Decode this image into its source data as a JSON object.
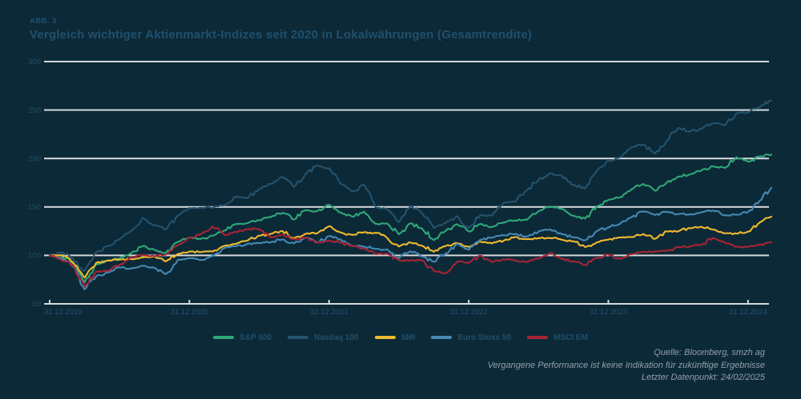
{
  "figure": {
    "label": "ABB. 3",
    "title": "Vergleich wichtiger Aktienmarkt-Indizes seit 2020 in Lokalwährungen (Gesamtrendite)"
  },
  "colors": {
    "background": "#0c2938",
    "heading_text": "#20506c",
    "axis_text": "#21516e",
    "gridline": "#d6dadd",
    "footer_text": "#93a0a8"
  },
  "footer": {
    "lines": [
      "Quelle: Bloomberg, smzh ag",
      "Vergangene Performance ist keine Indikation für zukünftige Ergebnisse",
      "Letzter Datenpunkt: 24/02/2025"
    ]
  },
  "chart_data": {
    "type": "line",
    "title": "Vergleich wichtiger Aktienmarkt-Indizes seit 2020 in Lokalwährungen (Gesamtrendite)",
    "xlabel": "",
    "ylabel": "",
    "ylim": [
      50,
      300
    ],
    "y_ticks": [
      300,
      250,
      200,
      150,
      100,
      50
    ],
    "grid": "horizontal",
    "legend_position": "bottom-center",
    "x_tick_labels": [
      "31.12.2019",
      "31.12.2020",
      "31.12.2021",
      "31.12.2022",
      "31.12.2023",
      "31.12.2024"
    ],
    "x_unit": "months-since-2019-12-31",
    "x_tick_months": [
      0,
      12,
      24,
      36,
      48,
      60
    ],
    "last_x_month": 62,
    "base_value": 100,
    "series": [
      {
        "name": "S&P 500",
        "color": "#2fa878",
        "values": [
          100,
          100,
          91.8,
          72.0,
          90.7,
          95.0,
          96.9,
          102.4,
          109.7,
          105.6,
          102.7,
          113.9,
          118.3,
          117.1,
          120.4,
          125.7,
          132.4,
          133.3,
          136.4,
          139.6,
          143.8,
          137.1,
          146.7,
          145.7,
          152.2,
          144.3,
          140.0,
          145.2,
          132.6,
          132.8,
          121.8,
          133.0,
          127.6,
          115.8,
          125.2,
          132.2,
          124.6,
          132.4,
          129.2,
          134.0,
          136.1,
          136.7,
          145.7,
          150.4,
          148.0,
          140.9,
          138.0,
          150.5,
          157.3,
          160.0,
          168.4,
          173.8,
          166.7,
          175.0,
          181.3,
          183.5,
          187.9,
          191.9,
          190.2,
          201.4,
          196.6,
          202.1,
          204.0
        ]
      },
      {
        "name": "Nasdaq 100",
        "color": "#24536d",
        "values": [
          100,
          103.0,
          96.9,
          84.0,
          103.1,
          109.6,
          116.5,
          125.1,
          138.9,
          131.0,
          126.9,
          140.9,
          148.9,
          149.3,
          149.2,
          151.7,
          160.7,
          158.8,
          168.8,
          173.7,
          181.0,
          170.7,
          184.2,
          193.0,
          189.8,
          173.7,
          165.9,
          172.9,
          149.9,
          147.5,
          134.2,
          151.0,
          143.3,
          128.2,
          133.3,
          140.6,
          128.0,
          141.6,
          141.0,
          154.4,
          155.2,
          167.2,
          178.0,
          184.8,
          182.0,
          172.7,
          169.1,
          187.2,
          197.5,
          201.2,
          211.9,
          214.4,
          205.0,
          217.9,
          231.6,
          227.9,
          230.4,
          236.2,
          234.3,
          246.5,
          247.5,
          253.0,
          260.0
        ]
      },
      {
        "name": "SMI",
        "color": "#f0b92e",
        "values": [
          100,
          100.2,
          92.7,
          77.0,
          92.4,
          94.7,
          95.7,
          96.2,
          98.0,
          98.9,
          94.0,
          101.5,
          104.0,
          103.5,
          104.0,
          109.7,
          111.9,
          115.3,
          120.5,
          122.3,
          125.2,
          117.7,
          122.4,
          122.9,
          130.1,
          123.6,
          121.1,
          123.8,
          123.3,
          118.0,
          109.1,
          113.3,
          109.9,
          103.8,
          109.5,
          112.6,
          108.8,
          114.2,
          112.3,
          115.1,
          119.0,
          116.7,
          117.9,
          118.0,
          116.1,
          114.6,
          108.6,
          113.5,
          116.3,
          118.4,
          119.0,
          122.0,
          117.1,
          124.8,
          124.8,
          128.2,
          129.5,
          126.6,
          122.7,
          122.5,
          124.5,
          134.0,
          140.0
        ]
      },
      {
        "name": "Euro Stoxx 50",
        "color": "#4489b2",
        "values": [
          100,
          97.2,
          88.9,
          65.0,
          78.5,
          82.4,
          87.8,
          86.4,
          89.1,
          87.1,
          80.7,
          95.3,
          97.0,
          95.2,
          99.5,
          107.4,
          109.4,
          111.9,
          112.7,
          113.5,
          116.5,
          112.5,
          118.4,
          113.3,
          119.8,
          116.5,
          109.6,
          109.2,
          106.6,
          106.2,
          97.0,
          104.3,
          99.0,
          93.4,
          101.9,
          111.8,
          105.8,
          116.3,
          118.5,
          120.9,
          122.2,
          119.3,
          124.5,
          126.8,
          122.0,
          118.7,
          115.6,
          125.0,
          129.0,
          132.7,
          139.4,
          145.3,
          141.6,
          145.0,
          142.6,
          142.2,
          144.7,
          146.2,
          141.4,
          142.1,
          144.8,
          156.4,
          170.0
        ]
      },
      {
        "name": "MSCI EM",
        "color": "#a82435",
        "values": [
          100,
          95.3,
          90.3,
          68.0,
          83.4,
          84.1,
          90.3,
          98.3,
          100.5,
          98.9,
          101.0,
          110.3,
          118.4,
          122.0,
          130.0,
          121.1,
          124.2,
          127.0,
          127.2,
          118.7,
          121.8,
          116.9,
          118.1,
          113.2,
          115.4,
          113.2,
          109.8,
          107.3,
          101.3,
          101.7,
          95.0,
          94.8,
          95.2,
          84.1,
          81.5,
          93.6,
          92.3,
          99.6,
          93.1,
          95.9,
          94.8,
          93.2,
          96.7,
          102.7,
          96.3,
          93.8,
          90.1,
          97.3,
          101.1,
          96.5,
          101.1,
          103.6,
          104.0,
          104.6,
          108.7,
          109.0,
          110.8,
          118.2,
          113.0,
          108.9,
          108.8,
          110.7,
          113.5
        ]
      }
    ]
  }
}
